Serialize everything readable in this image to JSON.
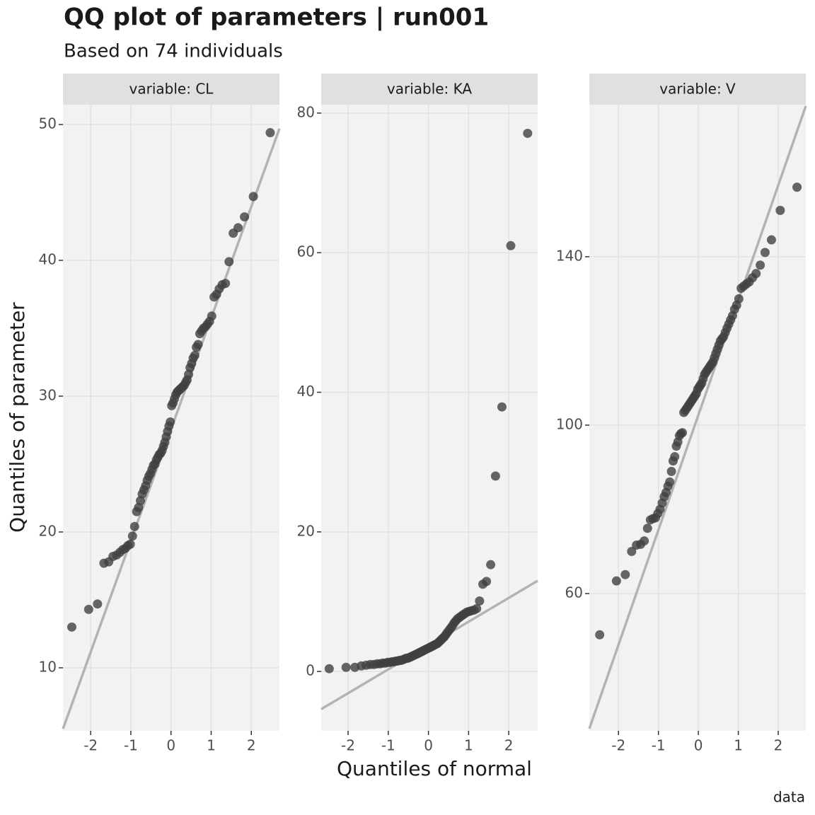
{
  "chart_data": {
    "type": "scatter",
    "title": "QQ plot of parameters | run001",
    "subtitle": "Based on 74 individuals",
    "xlabel": "Quantiles of normal",
    "ylabel": "Quantiles of parameter",
    "caption": "data",
    "point_color": "#404040",
    "line_color": "#b3b3b3",
    "grid": true,
    "x": [
      -2.47,
      -2.05,
      -1.83,
      -1.67,
      -1.55,
      -1.445,
      -1.355,
      -1.273,
      -1.2,
      -1.134,
      -1.072,
      -1.014,
      -0.959,
      -0.906,
      -0.856,
      -0.808,
      -0.762,
      -0.717,
      -0.674,
      -0.632,
      -0.592,
      -0.552,
      -0.513,
      -0.474,
      -0.437,
      -0.4,
      -0.364,
      -0.328,
      -0.292,
      -0.257,
      -0.222,
      -0.187,
      -0.153,
      -0.119,
      -0.085,
      -0.051,
      -0.017,
      0.017,
      0.051,
      0.085,
      0.119,
      0.153,
      0.187,
      0.222,
      0.257,
      0.292,
      0.328,
      0.364,
      0.4,
      0.437,
      0.474,
      0.513,
      0.552,
      0.592,
      0.632,
      0.674,
      0.717,
      0.762,
      0.808,
      0.856,
      0.906,
      0.959,
      1.014,
      1.072,
      1.134,
      1.2,
      1.273,
      1.355,
      1.445,
      1.55,
      1.67,
      1.83,
      2.05,
      2.47
    ],
    "facets": [
      {
        "strip": "variable: CL",
        "values": [
          13.0,
          14.3,
          14.7,
          17.7,
          17.8,
          18.2,
          18.3,
          18.5,
          18.7,
          18.8,
          19.0,
          19.1,
          19.7,
          20.4,
          21.5,
          21.8,
          22.3,
          22.8,
          23.1,
          23.4,
          23.8,
          24.1,
          24.3,
          24.6,
          24.9,
          25.0,
          25.3,
          25.5,
          25.7,
          25.8,
          26.0,
          26.3,
          26.6,
          27.0,
          27.4,
          27.8,
          28.1,
          29.3,
          29.5,
          29.8,
          30.1,
          30.3,
          30.4,
          30.5,
          30.6,
          30.7,
          30.8,
          31.0,
          31.2,
          31.6,
          32.1,
          32.4,
          32.8,
          33.0,
          33.6,
          33.8,
          34.6,
          34.8,
          35.0,
          35.1,
          35.3,
          35.5,
          35.9,
          37.3,
          37.5,
          37.9,
          38.2,
          38.3,
          39.9,
          42.0,
          42.4,
          43.2,
          44.7,
          49.4
        ],
        "line": {
          "x": [
            -2.69,
            2.7
          ],
          "y": [
            5.5,
            49.7
          ]
        },
        "xlim": [
          -2.69,
          2.7
        ],
        "ylim": [
          5.36,
          51.46
        ],
        "xticks": [
          -2,
          -1,
          0,
          1,
          2
        ],
        "yticks": [
          10,
          20,
          30,
          40,
          50
        ]
      },
      {
        "strip": "variable: KA",
        "values": [
          0.4,
          0.6,
          0.6,
          0.8,
          0.9,
          1.0,
          1.0,
          1.1,
          1.1,
          1.2,
          1.2,
          1.3,
          1.3,
          1.4,
          1.4,
          1.5,
          1.5,
          1.6,
          1.6,
          1.7,
          1.8,
          1.9,
          1.9,
          2.0,
          2.1,
          2.2,
          2.3,
          2.4,
          2.5,
          2.6,
          2.7,
          2.8,
          2.9,
          3.0,
          3.1,
          3.2,
          3.3,
          3.4,
          3.5,
          3.6,
          3.7,
          3.8,
          3.9,
          4.0,
          4.2,
          4.4,
          4.6,
          4.8,
          5.0,
          5.3,
          5.6,
          5.9,
          6.2,
          6.5,
          6.9,
          7.2,
          7.5,
          7.7,
          7.9,
          8.1,
          8.3,
          8.5,
          8.6,
          8.7,
          8.8,
          9.0,
          10.1,
          12.5,
          12.9,
          15.3,
          28.0,
          37.9,
          61.0,
          77.1
        ],
        "line": {
          "x": [
            -2.67,
            2.72
          ],
          "y": [
            -5.4,
            13.0
          ]
        },
        "xlim": [
          -2.67,
          2.72
        ],
        "ylim": [
          -8.5,
          81.2
        ],
        "xticks": [
          -2,
          -1,
          0,
          1,
          2
        ],
        "yticks": [
          0,
          20,
          40,
          60,
          80
        ]
      },
      {
        "strip": "variable: V",
        "values": [
          50.2,
          63.0,
          64.5,
          70.0,
          71.5,
          71.7,
          72.5,
          75.5,
          77.5,
          77.8,
          78.0,
          79.0,
          80.0,
          81.5,
          83.0,
          84.0,
          85.5,
          86.5,
          89.0,
          91.5,
          92.5,
          95.0,
          96.0,
          97.5,
          98.0,
          98.2,
          103.0,
          103.5,
          104.0,
          104.5,
          105.0,
          105.5,
          106.0,
          106.5,
          107.0,
          107.5,
          108.5,
          109.0,
          109.5,
          110.0,
          111.0,
          112.0,
          112.5,
          113.0,
          113.5,
          114.0,
          114.5,
          115.0,
          116.0,
          117.0,
          118.0,
          119.0,
          120.0,
          120.5,
          121.0,
          122.0,
          123.0,
          124.0,
          125.0,
          126.0,
          127.5,
          128.5,
          130.0,
          132.5,
          133.0,
          133.5,
          134.0,
          135.0,
          136.0,
          138.0,
          141.0,
          144.0,
          151.0,
          156.5
        ],
        "line": {
          "x": [
            -2.73,
            2.69
          ],
          "y": [
            27.9,
            175.8
          ]
        },
        "xlim": [
          -2.73,
          2.69
        ],
        "ylim": [
          27.4,
          176.1
        ],
        "xticks": [
          -2,
          -1,
          0,
          1,
          2
        ],
        "yticks": [
          60,
          100,
          140
        ]
      }
    ]
  }
}
